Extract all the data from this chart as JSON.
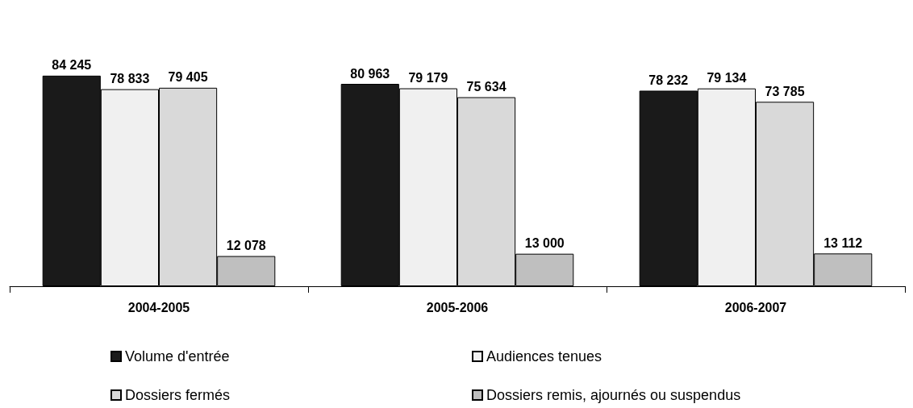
{
  "chart_data": {
    "type": "bar",
    "categories": [
      "2004-2005",
      "2005-2006",
      "2006-2007"
    ],
    "series": [
      {
        "name": "Volume d'entrée",
        "color": "#1a1a1a",
        "values": [
          84245,
          80963,
          78232
        ]
      },
      {
        "name": "Audiences tenues",
        "color": "#f0f0f0",
        "values": [
          78833,
          79179,
          79134
        ]
      },
      {
        "name": "Dossiers fermés",
        "color": "#d9d9d9",
        "values": [
          79405,
          75634,
          73785
        ]
      },
      {
        "name": "Dossiers remis, ajournés ou suspendus",
        "color": "#bfbfbf",
        "values": [
          12078,
          13000,
          13112
        ]
      }
    ],
    "data_labels": true,
    "legend": "bottom"
  }
}
